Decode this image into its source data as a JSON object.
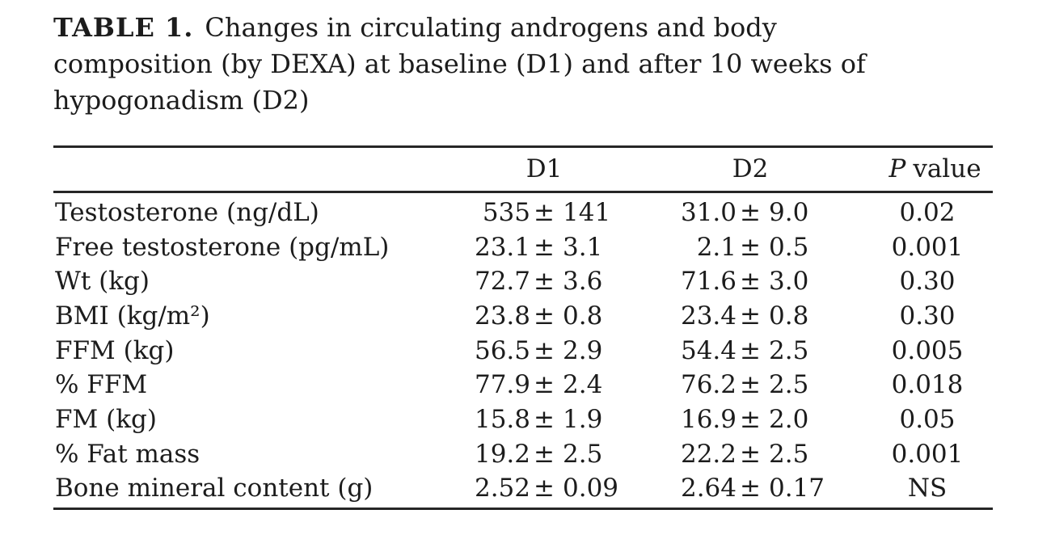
{
  "caption": {
    "label": "TABLE 1.",
    "line1": "Changes in circulating androgens and body",
    "line2": "composition (by DEXA) at baseline (D1) and after 10 weeks of",
    "line3": "hypogonadism (D2)"
  },
  "table": {
    "pm": "±",
    "columns": {
      "d1": "D1",
      "d2": "D2",
      "p_italic": "P",
      "p_rest": "value"
    },
    "rows": [
      {
        "label": "Testosterone (ng/dL)",
        "d1v": "535",
        "d1e": "141",
        "d2v": "31.0",
        "d2e": "9.0",
        "p": "0.02"
      },
      {
        "label": "Free testosterone (pg/mL)",
        "d1v": "23.1",
        "d1e": "3.1",
        "d2v": "2.1",
        "d2e": "0.5",
        "p": "0.001"
      },
      {
        "label": "Wt (kg)",
        "d1v": "72.7",
        "d1e": "3.6",
        "d2v": "71.6",
        "d2e": "3.0",
        "p": "0.30"
      },
      {
        "label": "BMI (kg/m²)",
        "d1v": "23.8",
        "d1e": "0.8",
        "d2v": "23.4",
        "d2e": "0.8",
        "p": "0.30"
      },
      {
        "label": "FFM (kg)",
        "d1v": "56.5",
        "d1e": "2.9",
        "d2v": "54.4",
        "d2e": "2.5",
        "p": "0.005"
      },
      {
        "label": "% FFM",
        "d1v": "77.9",
        "d1e": "2.4",
        "d2v": "76.2",
        "d2e": "2.5",
        "p": "0.018"
      },
      {
        "label": "FM (kg)",
        "d1v": "15.8",
        "d1e": "1.9",
        "d2v": "16.9",
        "d2e": "2.0",
        "p": "0.05"
      },
      {
        "label": "% Fat mass",
        "d1v": "19.2",
        "d1e": "2.5",
        "d2v": "22.2",
        "d2e": "2.5",
        "p": "0.001"
      },
      {
        "label": "Bone mineral content (g)",
        "d1v": "2.52",
        "d1e": "0.09",
        "d2v": "2.64",
        "d2e": "0.17",
        "p": "NS"
      }
    ]
  }
}
